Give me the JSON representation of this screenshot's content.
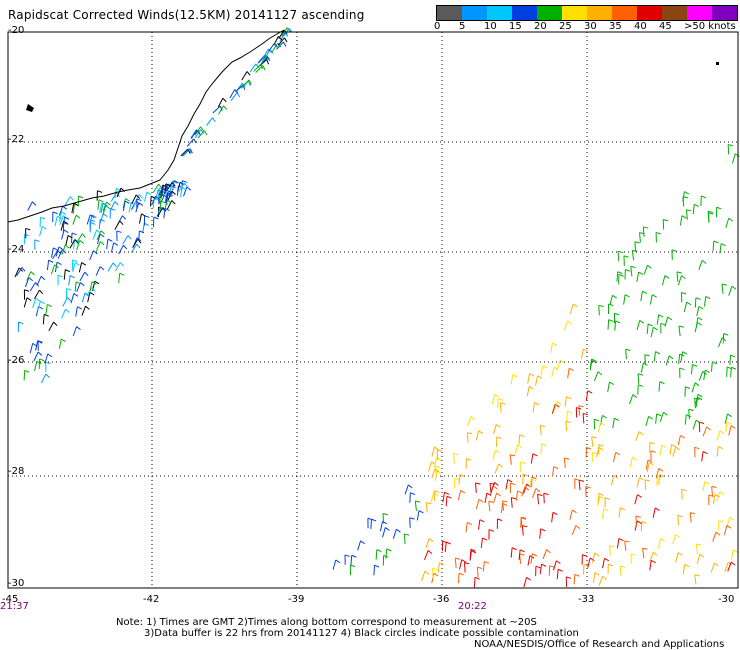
{
  "title": "Rapidscat Corrected Winds(12.5KM) 20141127 ascending",
  "legend": {
    "colors": [
      "#5a5a5a",
      "#0096ff",
      "#00c8ff",
      "#0040e0",
      "#00b000",
      "#ffe000",
      "#ffb000",
      "#ff6000",
      "#e00000",
      "#8b4513",
      "#ff00ff",
      "#8000c0"
    ],
    "labels": [
      "0",
      "5",
      "10",
      "15",
      "20",
      "25",
      "30",
      "35",
      "40",
      "45",
      ">50 knots"
    ]
  },
  "axes": {
    "lat_labels": [
      "-20",
      "-22",
      "-24",
      "-26",
      "-28",
      "-30"
    ],
    "lon_labels": [
      "-45",
      "-42",
      "-39",
      "-36",
      "-33",
      "-30"
    ]
  },
  "times": [
    "21:37",
    "20:22"
  ],
  "notes": {
    "line1": "Note: 1) Times are GMT 2)Times along bottom correspond to measurement at ~20S",
    "line2": "3)Data buffer is 22 hrs from 20141127 4) Black circles indicate possible contamination",
    "credit": "NOAA/NESDIS/Office of Research and Applications"
  }
}
